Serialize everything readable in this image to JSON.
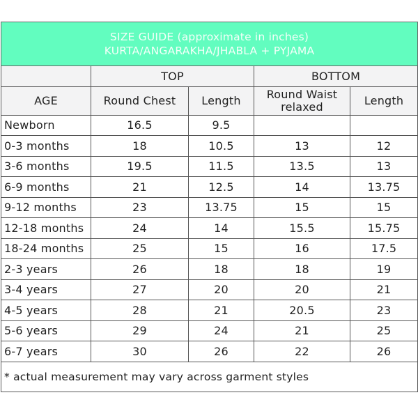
{
  "title": {
    "line1": "SIZE GUIDE (approximate in inches)",
    "line2": "KURTA/ANGARAKHA/JHABLA + PYJAMA"
  },
  "groups": {
    "top": "TOP",
    "bottom": "BOTTOM"
  },
  "headers": {
    "age": "AGE",
    "round_chest": "Round Chest",
    "top_length": "Length",
    "round_waist": "Round Waist",
    "round_waist_sub": "relaxed",
    "bottom_length": "Length"
  },
  "colors": {
    "title_bg": "#62fdbf",
    "header_bg": "#f3f3f4"
  },
  "rows": [
    [
      "Newborn",
      "16.5",
      "9.5",
      "",
      ""
    ],
    [
      "0-3 months",
      "18",
      "10.5",
      "13",
      "12"
    ],
    [
      "3-6 months",
      "19.5",
      "11.5",
      "13.5",
      "13"
    ],
    [
      "6-9 months",
      "21",
      "12.5",
      "14",
      "13.75"
    ],
    [
      "9-12 months",
      "23",
      "13.75",
      "15",
      "15"
    ],
    [
      "12-18 months",
      "24",
      "14",
      "15.5",
      "15.75"
    ],
    [
      "18-24 months",
      "25",
      "15",
      "16",
      "17.5"
    ],
    [
      "2-3 years",
      "26",
      "18",
      "18",
      "19"
    ],
    [
      "3-4 years",
      "27",
      "20",
      "20",
      "21"
    ],
    [
      "4-5 years",
      "28",
      "21",
      "20.5",
      "23"
    ],
    [
      "5-6 years",
      "29",
      "24",
      "21",
      "25"
    ],
    [
      "6-7 years",
      "30",
      "26",
      "22",
      "26"
    ]
  ],
  "footnote": "* actual measurement may vary across garment styles"
}
